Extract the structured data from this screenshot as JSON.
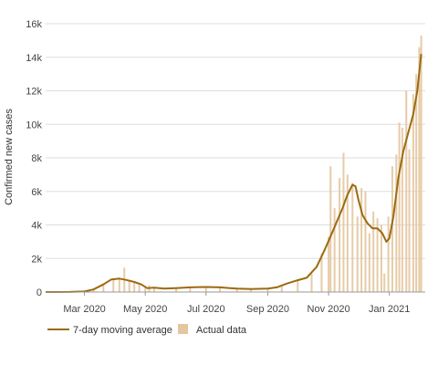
{
  "chart_data": {
    "type": "bar",
    "title": "",
    "xlabel": "",
    "ylabel": "Confirmed new cases",
    "ylim": [
      0,
      16000
    ],
    "yticks": [
      0,
      2000,
      4000,
      6000,
      8000,
      10000,
      12000,
      14000,
      16000
    ],
    "ytick_labels": [
      "0",
      "2k",
      "4k",
      "6k",
      "8k",
      "10k",
      "12k",
      "14k",
      "16k"
    ],
    "xlim": [
      "2020-01-22",
      "2021-02-06"
    ],
    "xticks": [
      "2020-03-01",
      "2020-05-01",
      "2020-07-01",
      "2020-09-01",
      "2020-11-01",
      "2021-01-01"
    ],
    "xtick_labels": [
      "Mar 2020",
      "May 2020",
      "Jul 2020",
      "Sep 2020",
      "Nov 2020",
      "Jan 2021"
    ],
    "grid": "horizontal",
    "legend_position": "bottom-left",
    "series": [
      {
        "name": "7-day moving average",
        "kind": "line",
        "color": "#9c6a10",
        "points": [
          [
            "2020-01-22",
            0
          ],
          [
            "2020-02-15",
            5
          ],
          [
            "2020-03-01",
            30
          ],
          [
            "2020-03-10",
            150
          ],
          [
            "2020-03-20",
            450
          ],
          [
            "2020-03-28",
            750
          ],
          [
            "2020-04-05",
            800
          ],
          [
            "2020-04-12",
            720
          ],
          [
            "2020-04-20",
            600
          ],
          [
            "2020-04-27",
            450
          ],
          [
            "2020-05-03",
            230
          ],
          [
            "2020-05-10",
            260
          ],
          [
            "2020-05-20",
            200
          ],
          [
            "2020-06-01",
            230
          ],
          [
            "2020-06-15",
            280
          ],
          [
            "2020-07-01",
            300
          ],
          [
            "2020-07-15",
            280
          ],
          [
            "2020-08-01",
            200
          ],
          [
            "2020-08-15",
            180
          ],
          [
            "2020-09-01",
            200
          ],
          [
            "2020-09-10",
            280
          ],
          [
            "2020-09-20",
            500
          ],
          [
            "2020-10-01",
            700
          ],
          [
            "2020-10-10",
            850
          ],
          [
            "2020-10-20",
            1500
          ],
          [
            "2020-10-28",
            2500
          ],
          [
            "2020-11-05",
            3600
          ],
          [
            "2020-11-10",
            4300
          ],
          [
            "2020-11-15",
            5000
          ],
          [
            "2020-11-20",
            5800
          ],
          [
            "2020-11-25",
            6400
          ],
          [
            "2020-11-28",
            6300
          ],
          [
            "2020-12-01",
            5500
          ],
          [
            "2020-12-05",
            4600
          ],
          [
            "2020-12-10",
            4100
          ],
          [
            "2020-12-15",
            3800
          ],
          [
            "2020-12-20",
            3800
          ],
          [
            "2020-12-25",
            3500
          ],
          [
            "2020-12-29",
            3000
          ],
          [
            "2021-01-01",
            3200
          ],
          [
            "2021-01-05",
            4500
          ],
          [
            "2021-01-10",
            6800
          ],
          [
            "2021-01-15",
            8400
          ],
          [
            "2021-01-20",
            9500
          ],
          [
            "2021-01-25",
            10600
          ],
          [
            "2021-01-29",
            12000
          ],
          [
            "2021-02-02",
            14200
          ]
        ]
      },
      {
        "name": "Actual data",
        "kind": "bar",
        "color": "#e3c79f",
        "points": [
          [
            "2020-03-10",
            150
          ],
          [
            "2020-03-20",
            500
          ],
          [
            "2020-03-30",
            780
          ],
          [
            "2020-04-05",
            850
          ],
          [
            "2020-04-10",
            1450
          ],
          [
            "2020-04-15",
            700
          ],
          [
            "2020-04-20",
            550
          ],
          [
            "2020-04-25",
            450
          ],
          [
            "2020-05-01",
            250
          ],
          [
            "2020-05-05",
            400
          ],
          [
            "2020-05-10",
            250
          ],
          [
            "2020-06-01",
            250
          ],
          [
            "2020-06-15",
            300
          ],
          [
            "2020-07-01",
            320
          ],
          [
            "2020-07-15",
            300
          ],
          [
            "2020-08-01",
            210
          ],
          [
            "2020-08-15",
            190
          ],
          [
            "2020-09-01",
            220
          ],
          [
            "2020-09-15",
            400
          ],
          [
            "2020-10-01",
            750
          ],
          [
            "2020-10-15",
            1100
          ],
          [
            "2020-10-25",
            2300
          ],
          [
            "2020-11-01",
            3300
          ],
          [
            "2020-11-03",
            7500
          ],
          [
            "2020-11-07",
            5000
          ],
          [
            "2020-11-12",
            6800
          ],
          [
            "2020-11-16",
            8300
          ],
          [
            "2020-11-20",
            7000
          ],
          [
            "2020-11-25",
            6500
          ],
          [
            "2020-11-30",
            4500
          ],
          [
            "2020-12-04",
            6200
          ],
          [
            "2020-12-08",
            6000
          ],
          [
            "2020-12-12",
            3500
          ],
          [
            "2020-12-16",
            4800
          ],
          [
            "2020-12-20",
            4400
          ],
          [
            "2020-12-24",
            4000
          ],
          [
            "2020-12-27",
            1100
          ],
          [
            "2020-12-31",
            4500
          ],
          [
            "2021-01-04",
            7500
          ],
          [
            "2021-01-08",
            8200
          ],
          [
            "2021-01-11",
            10100
          ],
          [
            "2021-01-14",
            9800
          ],
          [
            "2021-01-18",
            12000
          ],
          [
            "2021-01-21",
            8500
          ],
          [
            "2021-01-25",
            11800
          ],
          [
            "2021-01-28",
            13000
          ],
          [
            "2021-01-31",
            14600
          ],
          [
            "2021-02-02",
            15300
          ]
        ]
      }
    ]
  }
}
